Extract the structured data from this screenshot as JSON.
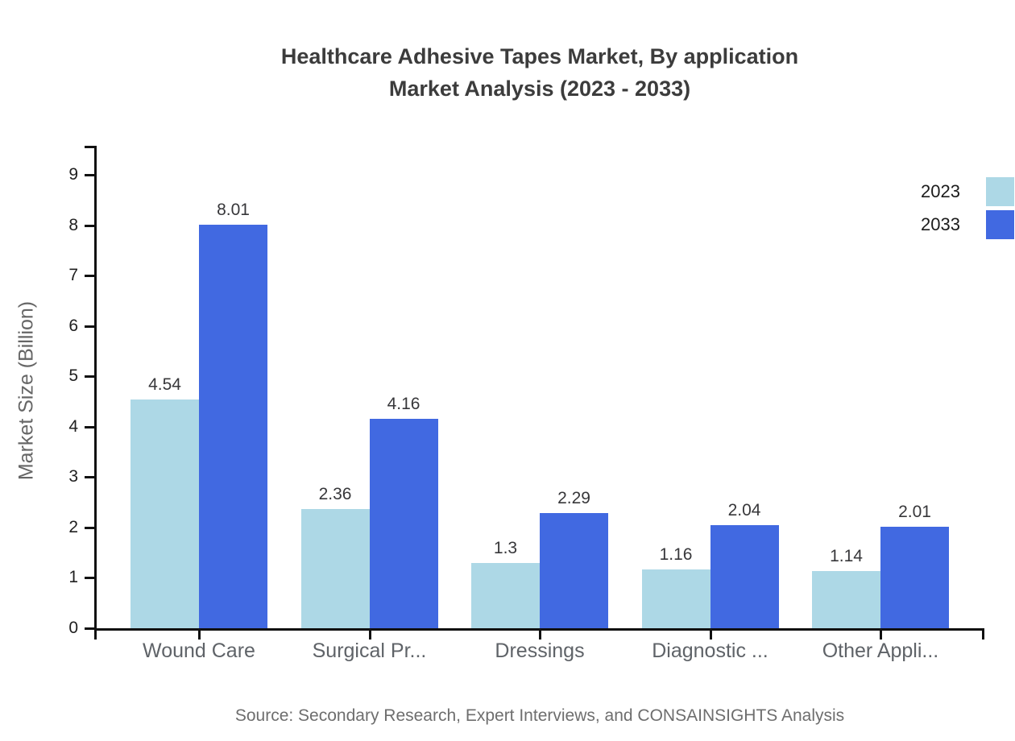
{
  "page": {
    "background": "#ffffff"
  },
  "chart_data": {
    "type": "bar",
    "title": "Healthcare Adhesive Tapes Market, By application",
    "subtitle": "Market Analysis (2023 - 2033)",
    "ylabel": "Market Size (Billion)",
    "xlabel": "",
    "categories": [
      "Wound Care",
      "Surgical Pr...",
      "Dressings",
      "Diagnostic ...",
      "Other Appli..."
    ],
    "series": [
      {
        "name": "2023",
        "color": "#add8e6",
        "values": [
          4.54,
          2.36,
          1.3,
          1.16,
          1.14
        ]
      },
      {
        "name": "2033",
        "color": "#4169e1",
        "values": [
          8.01,
          4.16,
          2.29,
          2.04,
          2.01
        ]
      }
    ],
    "yticks": [
      0,
      1,
      2,
      3,
      4,
      5,
      6,
      7,
      8,
      9
    ],
    "ylim": [
      0,
      9.58
    ],
    "grid": false,
    "legend_position": "top-right",
    "value_labels_shown": true
  },
  "colors": {
    "axis": "#111111",
    "title_text": "#3c3c3c",
    "tick_text": "#202020",
    "value_label_text": "#37373a",
    "category_text": "#5f6368",
    "ylabel_text": "#666666",
    "legend_text": "#1c1c1c",
    "source_text": "#6e6e6e"
  },
  "source_note": "Source: Secondary Research, Expert Interviews, and CONSAINSIGHTS Analysis"
}
